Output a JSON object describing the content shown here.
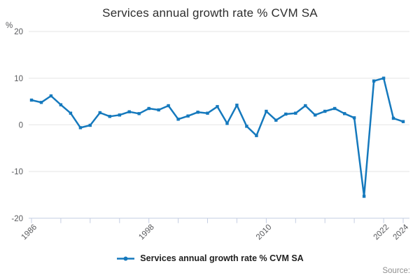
{
  "title": "Services annual growth rate % CVM SA",
  "y_axis": {
    "unit": "%",
    "ticks": [
      20,
      10,
      0,
      -10,
      -20
    ]
  },
  "x_axis": {
    "tick_years": [
      1986,
      1989,
      1992,
      1995,
      1998,
      2001,
      2004,
      2007,
      2010,
      2013,
      2016,
      2019,
      2022,
      2024
    ],
    "labeled_years": [
      1986,
      1998,
      2010,
      2022,
      2024
    ]
  },
  "legend": {
    "label": "Services annual growth rate % CVM SA"
  },
  "source": {
    "label": "Source:"
  },
  "colors": {
    "line": "#1579bd",
    "grid": "#e6e6e6",
    "axis": "#c4cde2",
    "tick_text": "#58595c",
    "title_text": "#2e2e2e",
    "legend_text": "#1f1f1f",
    "source_text": "#8f8f8f"
  },
  "chart_data": {
    "type": "line",
    "title": "Services annual growth rate % CVM SA",
    "xlabel": "",
    "ylabel": "%",
    "ylim": [
      -20,
      20
    ],
    "grid": true,
    "legend_position": "bottom",
    "markers": true,
    "x": [
      1986,
      1987,
      1988,
      1989,
      1990,
      1991,
      1992,
      1993,
      1994,
      1995,
      1996,
      1997,
      1998,
      1999,
      2000,
      2001,
      2002,
      2003,
      2004,
      2005,
      2006,
      2007,
      2008,
      2009,
      2010,
      2011,
      2012,
      2013,
      2014,
      2015,
      2016,
      2017,
      2018,
      2019,
      2020,
      2021,
      2022,
      2023,
      2024
    ],
    "series": [
      {
        "name": "Services annual growth rate % CVM SA",
        "values": [
          5.3,
          4.8,
          6.2,
          4.3,
          2.5,
          -0.6,
          -0.1,
          2.6,
          1.8,
          2.1,
          2.8,
          2.4,
          3.5,
          3.2,
          4.1,
          1.2,
          1.9,
          2.7,
          2.5,
          3.9,
          0.3,
          4.2,
          -0.3,
          -2.3,
          2.9,
          1.0,
          2.3,
          2.5,
          4.1,
          2.1,
          2.9,
          3.5,
          2.4,
          1.5,
          -15.3,
          9.4,
          10.0,
          1.4,
          0.7
        ]
      }
    ]
  }
}
